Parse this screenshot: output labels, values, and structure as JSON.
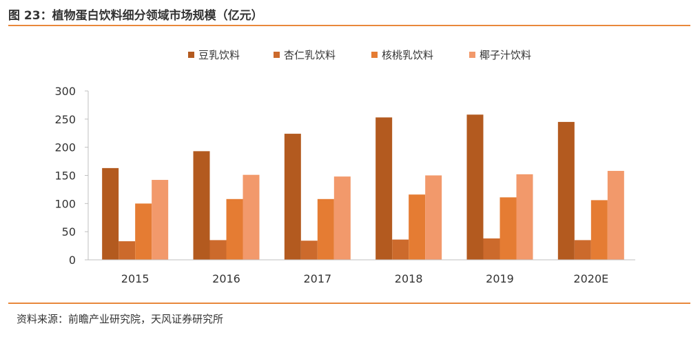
{
  "figure": {
    "title": "图 23：植物蛋白饮料细分领域市场规模（亿元）",
    "source": "资料来源：前瞻产业研究院，天风证券研究所"
  },
  "chart_data": {
    "type": "bar",
    "title": "",
    "xlabel": "",
    "ylabel": "",
    "categories": [
      "2015",
      "2016",
      "2017",
      "2018",
      "2019",
      "2020E"
    ],
    "ylim": [
      0,
      300
    ],
    "yticks": [
      0,
      50,
      100,
      150,
      200,
      250,
      300
    ],
    "grid": false,
    "legend_position": "top",
    "series": [
      {
        "name": "豆乳饮料",
        "color": "#B35A1F",
        "values": [
          163,
          193,
          224,
          253,
          258,
          245
        ]
      },
      {
        "name": "杏仁乳饮料",
        "color": "#CC6A2C",
        "values": [
          33,
          35,
          34,
          36,
          38,
          35
        ]
      },
      {
        "name": "核桃乳饮料",
        "color": "#E57C33",
        "values": [
          100,
          108,
          108,
          116,
          111,
          106
        ]
      },
      {
        "name": "椰子汁饮料",
        "color": "#F2996B",
        "values": [
          142,
          151,
          148,
          150,
          152,
          158
        ]
      }
    ]
  }
}
